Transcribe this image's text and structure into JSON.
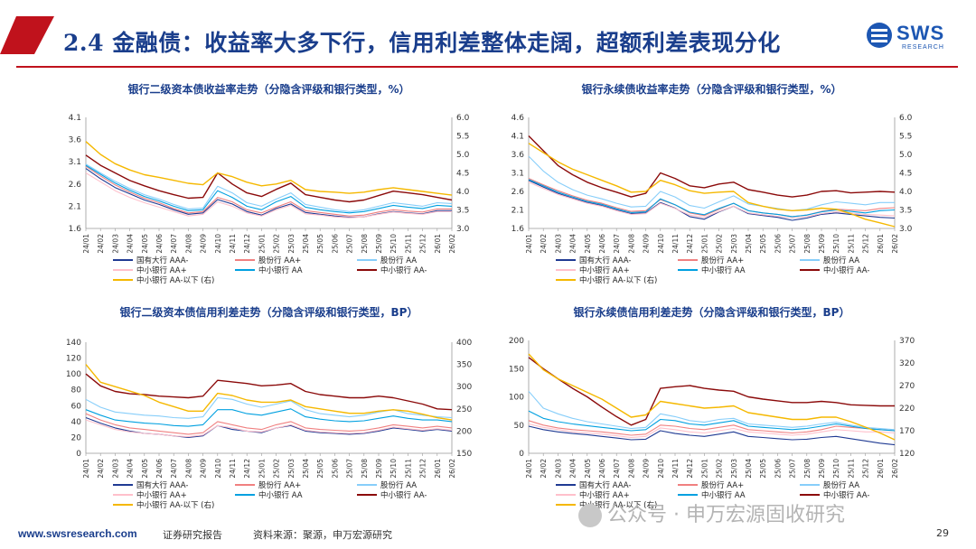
{
  "slide": {
    "title": "2.4 金融债：收益率大多下行，信用利差整体走阔，超额利差表现分化",
    "logo_text": "SWS",
    "logo_sub": "RESEARCH"
  },
  "footer": {
    "url": "www.swsresearch.com",
    "report": "证券研究报告",
    "source": "资料来源：聚源，申万宏源研究",
    "page": "29"
  },
  "watermark": {
    "text": "公众号 · 申万宏源固收研究"
  },
  "colors": {
    "title": "#1a3e8c",
    "accent_red": "#c0121c",
    "s1": "#1f3a93",
    "s2": "#f08080",
    "s3": "#87cefa",
    "s4": "#ffc0cb",
    "s5": "#00a0e0",
    "s6": "#8b0a0a",
    "s7": "#f5b800"
  },
  "legend": [
    {
      "name": "国有大行 AAA-",
      "color": "#1f3a93"
    },
    {
      "name": "股份行 AA+",
      "color": "#f08080"
    },
    {
      "name": "股份行 AA",
      "color": "#87cefa"
    },
    {
      "name": "中小银行 AA+",
      "color": "#ffc0cb"
    },
    {
      "name": "中小银行 AA",
      "color": "#00a0e0"
    },
    {
      "name": "中小银行 AA-",
      "color": "#8b0a0a"
    },
    {
      "name": "中小银行 AA-以下 (右)",
      "color": "#f5b800"
    }
  ],
  "x_ticks": [
    "24/01",
    "24/02",
    "24/03",
    "24/04",
    "24/05",
    "24/06",
    "24/07",
    "24/08",
    "24/09",
    "24/10",
    "24/11",
    "24/12",
    "25/01",
    "25/02",
    "25/03",
    "25/04",
    "25/05",
    "25/06",
    "25/07",
    "25/08",
    "25/09",
    "25/10",
    "25/11",
    "25/12",
    "26/01",
    "26/02"
  ],
  "chart_data": [
    {
      "type": "line",
      "title": "银行二级资本债收益率走势（分隐含评级和银行类型，%）",
      "ylim": [
        1.6,
        4.1
      ],
      "y_ticks": [
        "1.6",
        "2.1",
        "2.6",
        "3.1",
        "3.6",
        "4.1"
      ],
      "y2lim": [
        3.0,
        6.0
      ],
      "y2_ticks": [
        "3.0",
        "3.5",
        "4.0",
        "4.5",
        "5.0",
        "5.5",
        "6.0"
      ],
      "series": [
        {
          "name": "国有大行 AAA-",
          "axis": "left",
          "values": [
            2.95,
            2.72,
            2.52,
            2.38,
            2.24,
            2.14,
            2.02,
            1.92,
            1.95,
            2.25,
            2.15,
            1.98,
            1.9,
            2.05,
            2.15,
            1.96,
            1.92,
            1.88,
            1.85,
            1.86,
            1.93,
            1.98,
            1.95,
            1.93,
            2.0,
            2.0
          ]
        },
        {
          "name": "股份行 AA+",
          "axis": "left",
          "values": [
            3.0,
            2.78,
            2.58,
            2.42,
            2.28,
            2.18,
            2.05,
            1.95,
            1.98,
            2.3,
            2.2,
            2.02,
            1.95,
            2.08,
            2.2,
            2.0,
            1.96,
            1.92,
            1.88,
            1.9,
            1.97,
            2.02,
            1.99,
            1.97,
            2.04,
            2.04
          ]
        },
        {
          "name": "股份行 AA",
          "axis": "left",
          "values": [
            3.05,
            2.85,
            2.66,
            2.5,
            2.36,
            2.26,
            2.14,
            2.04,
            2.06,
            2.55,
            2.4,
            2.18,
            2.1,
            2.26,
            2.4,
            2.14,
            2.08,
            2.02,
            1.98,
            2.02,
            2.1,
            2.18,
            2.14,
            2.1,
            2.18,
            2.16
          ]
        },
        {
          "name": "中小银行 AA+",
          "axis": "left",
          "values": [
            2.85,
            2.65,
            2.45,
            2.3,
            2.18,
            2.08,
            1.98,
            1.88,
            1.92,
            2.2,
            2.1,
            1.95,
            1.88,
            2.02,
            2.12,
            1.93,
            1.9,
            1.86,
            1.84,
            1.86,
            1.92,
            1.97,
            1.94,
            1.92,
            1.98,
            1.98
          ]
        },
        {
          "name": "中小银行 AA",
          "axis": "left",
          "values": [
            3.02,
            2.82,
            2.62,
            2.46,
            2.32,
            2.22,
            2.1,
            2.0,
            2.02,
            2.45,
            2.3,
            2.1,
            2.02,
            2.2,
            2.32,
            2.08,
            2.02,
            1.98,
            1.95,
            1.98,
            2.05,
            2.12,
            2.08,
            2.05,
            2.12,
            2.1
          ]
        },
        {
          "name": "中小银行 AA-",
          "axis": "left",
          "values": [
            3.25,
            3.02,
            2.85,
            2.68,
            2.56,
            2.45,
            2.36,
            2.28,
            2.3,
            2.85,
            2.6,
            2.4,
            2.32,
            2.48,
            2.62,
            2.36,
            2.3,
            2.24,
            2.2,
            2.24,
            2.34,
            2.44,
            2.4,
            2.36,
            2.3,
            2.24
          ]
        },
        {
          "name": "中小银行 AA-以下 (右)",
          "axis": "right",
          "values": [
            5.35,
            5.0,
            4.75,
            4.58,
            4.45,
            4.38,
            4.3,
            4.22,
            4.18,
            4.5,
            4.4,
            4.25,
            4.15,
            4.2,
            4.3,
            4.05,
            4.0,
            3.98,
            3.95,
            3.98,
            4.05,
            4.1,
            4.05,
            4.0,
            3.95,
            3.9
          ]
        }
      ]
    },
    {
      "type": "line",
      "title": "银行永续债收益率走势（分隐含评级和银行类型，%）",
      "ylim": [
        1.6,
        4.6
      ],
      "y_ticks": [
        "1.6",
        "2.1",
        "2.6",
        "3.1",
        "3.6",
        "4.1",
        "4.6"
      ],
      "y2lim": [
        3.0,
        6.0
      ],
      "y2_ticks": [
        "3.0",
        "3.5",
        "4.0",
        "4.5",
        "5.0",
        "5.5",
        "6.0"
      ],
      "series": [
        {
          "name": "国有大行 AAA-",
          "axis": "left",
          "values": [
            2.9,
            2.72,
            2.55,
            2.42,
            2.3,
            2.22,
            2.1,
            2.0,
            2.02,
            2.3,
            2.15,
            1.92,
            1.85,
            2.05,
            2.2,
            2.0,
            1.95,
            1.9,
            1.82,
            1.88,
            1.98,
            2.02,
            1.98,
            1.94,
            1.9,
            1.88
          ]
        },
        {
          "name": "股份行 AA+",
          "axis": "left",
          "values": [
            2.95,
            2.78,
            2.62,
            2.48,
            2.36,
            2.28,
            2.16,
            2.06,
            2.08,
            2.38,
            2.24,
            2.02,
            1.95,
            2.12,
            2.28,
            2.08,
            2.02,
            1.98,
            1.92,
            1.96,
            2.06,
            2.12,
            2.1,
            2.08,
            2.14,
            2.16
          ]
        },
        {
          "name": "股份行 AA",
          "axis": "left",
          "values": [
            3.55,
            3.15,
            2.85,
            2.65,
            2.5,
            2.4,
            2.28,
            2.18,
            2.2,
            2.6,
            2.45,
            2.22,
            2.15,
            2.32,
            2.48,
            2.26,
            2.2,
            2.14,
            2.08,
            2.12,
            2.24,
            2.32,
            2.28,
            2.24,
            2.3,
            2.3
          ]
        },
        {
          "name": "中小银行 AA+",
          "axis": "left",
          "values": [
            2.85,
            2.68,
            2.52,
            2.4,
            2.28,
            2.2,
            2.08,
            1.98,
            2.0,
            2.28,
            2.14,
            1.96,
            1.9,
            2.06,
            2.2,
            2.02,
            1.97,
            1.93,
            1.88,
            1.92,
            2.0,
            2.05,
            2.02,
            1.98,
            1.96,
            1.94
          ]
        },
        {
          "name": "中小银行 AA",
          "axis": "left",
          "values": [
            2.92,
            2.75,
            2.58,
            2.45,
            2.33,
            2.25,
            2.13,
            2.03,
            2.05,
            2.4,
            2.24,
            2.04,
            1.97,
            2.14,
            2.28,
            2.08,
            2.02,
            1.98,
            1.92,
            1.96,
            2.05,
            2.1,
            2.06,
            2.02,
            2.08,
            2.1
          ]
        },
        {
          "name": "中小银行 AA-",
          "axis": "left",
          "values": [
            4.1,
            3.7,
            3.3,
            3.05,
            2.85,
            2.7,
            2.58,
            2.45,
            2.55,
            3.1,
            2.95,
            2.75,
            2.7,
            2.8,
            2.85,
            2.65,
            2.58,
            2.5,
            2.45,
            2.5,
            2.6,
            2.62,
            2.56,
            2.58,
            2.6,
            2.58
          ]
        },
        {
          "name": "中小银行 AA-以下 (右)",
          "axis": "right",
          "values": [
            5.3,
            5.05,
            4.8,
            4.6,
            4.45,
            4.3,
            4.15,
            3.98,
            4.0,
            4.3,
            4.18,
            4.02,
            3.95,
            3.98,
            4.0,
            3.7,
            3.6,
            3.52,
            3.48,
            3.5,
            3.55,
            3.52,
            3.4,
            3.25,
            3.15,
            3.05
          ]
        }
      ]
    },
    {
      "type": "line",
      "title": "银行二级资本债信用利差走势（分隐含评级和银行类型，BP）",
      "ylim": [
        0,
        140
      ],
      "y_ticks": [
        "0",
        "20",
        "40",
        "60",
        "80",
        "100",
        "120",
        "140"
      ],
      "y2lim": [
        150,
        400
      ],
      "y2_ticks": [
        "150",
        "200",
        "250",
        "300",
        "350",
        "400"
      ],
      "series": [
        {
          "name": "国有大行 AAA-",
          "axis": "left",
          "values": [
            45,
            38,
            32,
            28,
            25,
            24,
            22,
            20,
            22,
            35,
            30,
            28,
            26,
            32,
            35,
            28,
            26,
            25,
            24,
            25,
            28,
            32,
            30,
            28,
            30,
            28
          ]
        },
        {
          "name": "股份行 AA+",
          "axis": "left",
          "values": [
            50,
            42,
            36,
            32,
            30,
            28,
            26,
            24,
            26,
            40,
            36,
            32,
            30,
            36,
            40,
            32,
            30,
            29,
            28,
            29,
            32,
            36,
            34,
            32,
            34,
            32
          ]
        },
        {
          "name": "股份行 AA",
          "axis": "left",
          "values": [
            68,
            58,
            52,
            50,
            48,
            47,
            45,
            44,
            46,
            70,
            68,
            62,
            58,
            62,
            66,
            55,
            50,
            48,
            46,
            48,
            52,
            55,
            50,
            48,
            46,
            45
          ]
        },
        {
          "name": "中小银行 AA+",
          "axis": "left",
          "values": [
            42,
            36,
            30,
            27,
            25,
            24,
            22,
            21,
            23,
            35,
            32,
            28,
            27,
            32,
            36,
            29,
            27,
            26,
            25,
            26,
            29,
            33,
            31,
            29,
            31,
            29
          ]
        },
        {
          "name": "中小银行 AA",
          "axis": "left",
          "values": [
            55,
            48,
            42,
            40,
            38,
            37,
            35,
            34,
            36,
            55,
            55,
            50,
            48,
            52,
            56,
            46,
            43,
            41,
            40,
            41,
            44,
            47,
            44,
            42,
            42,
            40
          ]
        },
        {
          "name": "中小银行 AA-",
          "axis": "left",
          "values": [
            100,
            85,
            78,
            75,
            74,
            72,
            71,
            70,
            72,
            92,
            90,
            88,
            85,
            86,
            88,
            78,
            74,
            72,
            70,
            70,
            72,
            70,
            66,
            62,
            56,
            55
          ]
        },
        {
          "name": "中小银行 AA-以下 (右)",
          "axis": "right",
          "values": [
            350,
            310,
            300,
            290,
            280,
            265,
            255,
            245,
            245,
            285,
            280,
            270,
            265,
            265,
            270,
            255,
            250,
            245,
            240,
            240,
            245,
            248,
            245,
            238,
            230,
            225
          ]
        }
      ]
    },
    {
      "type": "line",
      "title": "银行永续债信用利差走势（分隐含评级和银行类型，BP）",
      "ylim": [
        0,
        200
      ],
      "y_ticks": [
        "0",
        "50",
        "100",
        "150",
        "200"
      ],
      "y2lim": [
        120,
        370
      ],
      "y2_ticks": [
        "120",
        "170",
        "220",
        "270",
        "320",
        "370"
      ],
      "series": [
        {
          "name": "国有大行 AAA-",
          "axis": "left",
          "values": [
            48,
            42,
            38,
            35,
            33,
            30,
            27,
            24,
            25,
            40,
            35,
            32,
            30,
            34,
            38,
            30,
            28,
            26,
            24,
            25,
            28,
            30,
            26,
            22,
            18,
            15
          ]
        },
        {
          "name": "股份行 AA+",
          "axis": "left",
          "values": [
            58,
            50,
            45,
            42,
            40,
            38,
            35,
            32,
            34,
            50,
            48,
            44,
            42,
            46,
            50,
            42,
            40,
            38,
            36,
            38,
            42,
            48,
            46,
            44,
            42,
            40
          ]
        },
        {
          "name": "股份行 AA",
          "axis": "left",
          "values": [
            110,
            80,
            70,
            62,
            56,
            52,
            48,
            44,
            46,
            70,
            65,
            58,
            55,
            60,
            62,
            52,
            50,
            48,
            46,
            48,
            52,
            55,
            50,
            46,
            44,
            42
          ]
        },
        {
          "name": "中小银行 AA+",
          "axis": "left",
          "values": [
            52,
            46,
            42,
            38,
            36,
            34,
            31,
            28,
            30,
            45,
            42,
            38,
            36,
            40,
            44,
            38,
            36,
            34,
            32,
            34,
            38,
            42,
            40,
            38,
            38,
            36
          ]
        },
        {
          "name": "中小银行 AA",
          "axis": "left",
          "values": [
            75,
            62,
            56,
            52,
            49,
            46,
            43,
            40,
            42,
            60,
            58,
            52,
            50,
            54,
            58,
            48,
            46,
            44,
            42,
            44,
            48,
            52,
            48,
            44,
            42,
            40
          ]
        },
        {
          "name": "中小银行 AA-",
          "axis": "left",
          "values": [
            170,
            150,
            132,
            115,
            100,
            82,
            65,
            50,
            60,
            115,
            118,
            120,
            115,
            112,
            110,
            100,
            96,
            93,
            90,
            90,
            92,
            90,
            86,
            85,
            84,
            84
          ]
        },
        {
          "name": "中小银行 AA-以下 (右)",
          "axis": "right",
          "values": [
            340,
            305,
            285,
            270,
            255,
            240,
            220,
            200,
            205,
            235,
            230,
            225,
            220,
            222,
            225,
            210,
            205,
            200,
            195,
            195,
            200,
            200,
            190,
            178,
            165,
            150
          ]
        }
      ]
    }
  ]
}
